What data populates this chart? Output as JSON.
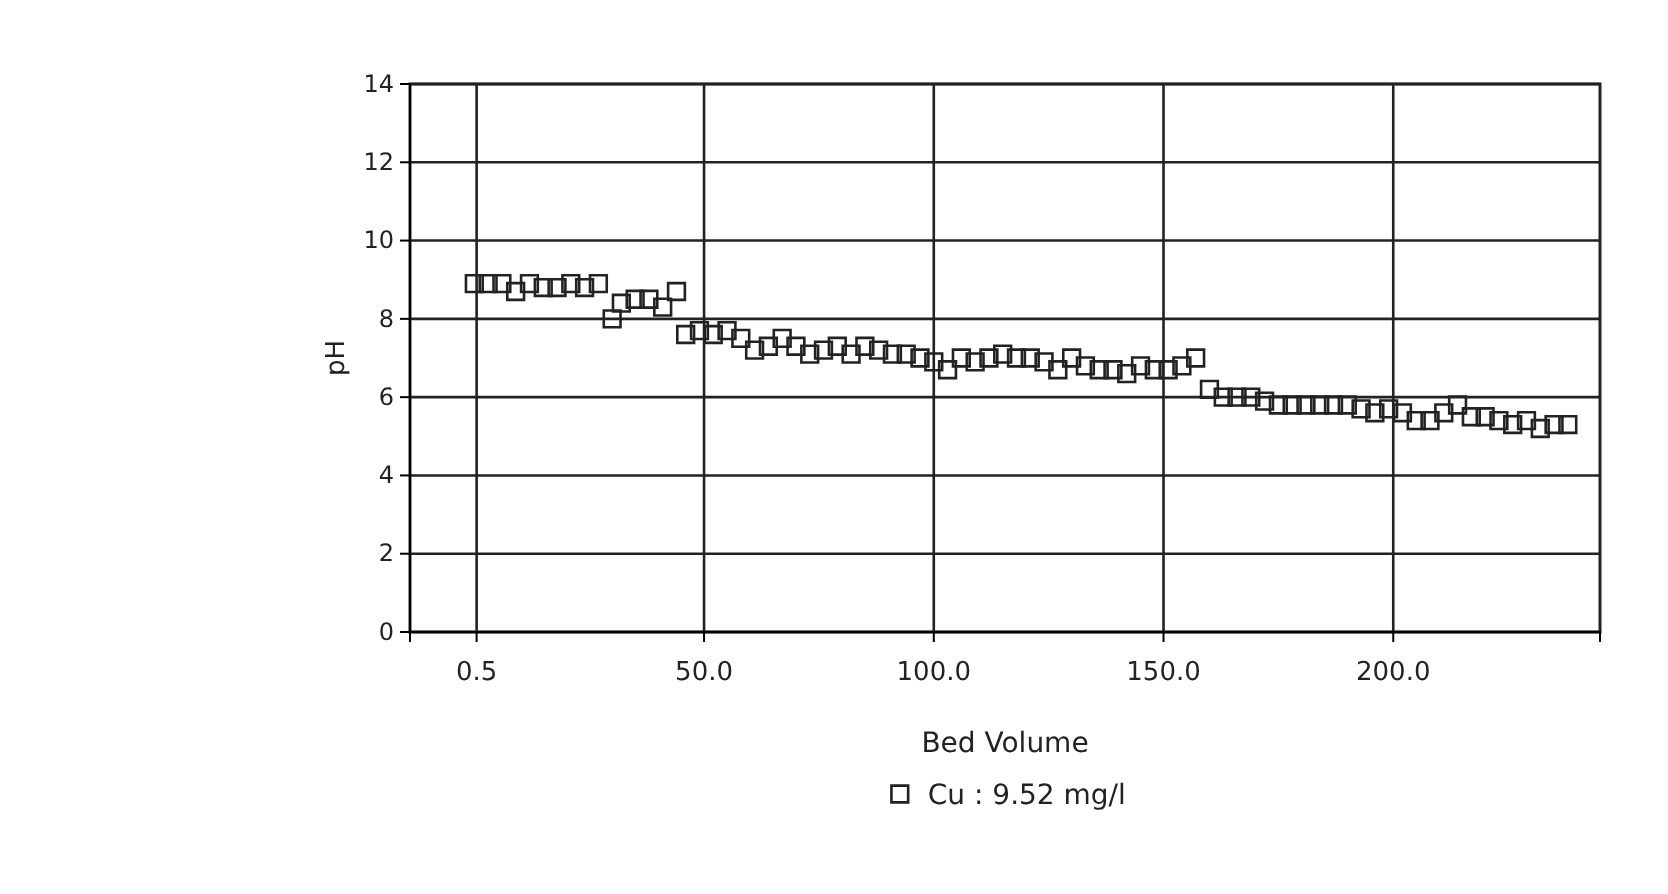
{
  "chart_data": {
    "type": "scatter",
    "xlabel": "Bed Volume",
    "ylabel": "pH",
    "xlim": [
      -14,
      245
    ],
    "xticks": [
      {
        "value": 0.5,
        "label": "0.5"
      },
      {
        "value": 50,
        "label": "50.0"
      },
      {
        "value": 100,
        "label": "100.0"
      },
      {
        "value": 150,
        "label": "150.0"
      },
      {
        "value": 200,
        "label": "200.0"
      }
    ],
    "ylim": [
      0,
      14
    ],
    "yticks": [
      0,
      2,
      4,
      6,
      8,
      10,
      12,
      14
    ],
    "grid": true,
    "legend": "bottom",
    "marker": "square",
    "series": [
      {
        "name": "Cu : 9.52 mg/l",
        "color": "#222222",
        "x": [
          0,
          3,
          6,
          9,
          12,
          15,
          18,
          21,
          24,
          27,
          30,
          32,
          35,
          38,
          41,
          44,
          46,
          49,
          52,
          55,
          58,
          61,
          64,
          67,
          70,
          73,
          76,
          79,
          82,
          85,
          88,
          91,
          94,
          97,
          100,
          103,
          106,
          109,
          112,
          115,
          118,
          121,
          124,
          127,
          130,
          133,
          136,
          139,
          142,
          145,
          148,
          151,
          154,
          157,
          160,
          163,
          166,
          169,
          172,
          175,
          178,
          181,
          184,
          187,
          190,
          193,
          196,
          199,
          202,
          205,
          208,
          211,
          214,
          217,
          220,
          223,
          226,
          229,
          232,
          235,
          238
        ],
        "values": [
          8.9,
          8.9,
          8.9,
          8.7,
          8.9,
          8.8,
          8.8,
          8.9,
          8.8,
          8.9,
          8.0,
          8.4,
          8.5,
          8.5,
          8.3,
          8.7,
          7.6,
          7.7,
          7.6,
          7.7,
          7.5,
          7.2,
          7.3,
          7.5,
          7.3,
          7.1,
          7.2,
          7.3,
          7.1,
          7.3,
          7.2,
          7.1,
          7.1,
          7.0,
          6.9,
          6.7,
          7.0,
          6.9,
          7.0,
          7.1,
          7.0,
          7.0,
          6.9,
          6.7,
          7.0,
          6.8,
          6.7,
          6.7,
          6.6,
          6.8,
          6.7,
          6.7,
          6.8,
          7.0,
          6.2,
          6.0,
          6.0,
          6.0,
          5.9,
          5.8,
          5.8,
          5.8,
          5.8,
          5.8,
          5.8,
          5.7,
          5.6,
          5.7,
          5.6,
          5.4,
          5.4,
          5.6,
          5.8,
          5.5,
          5.5,
          5.4,
          5.3,
          5.4,
          5.2,
          5.3,
          5.3
        ]
      }
    ]
  }
}
